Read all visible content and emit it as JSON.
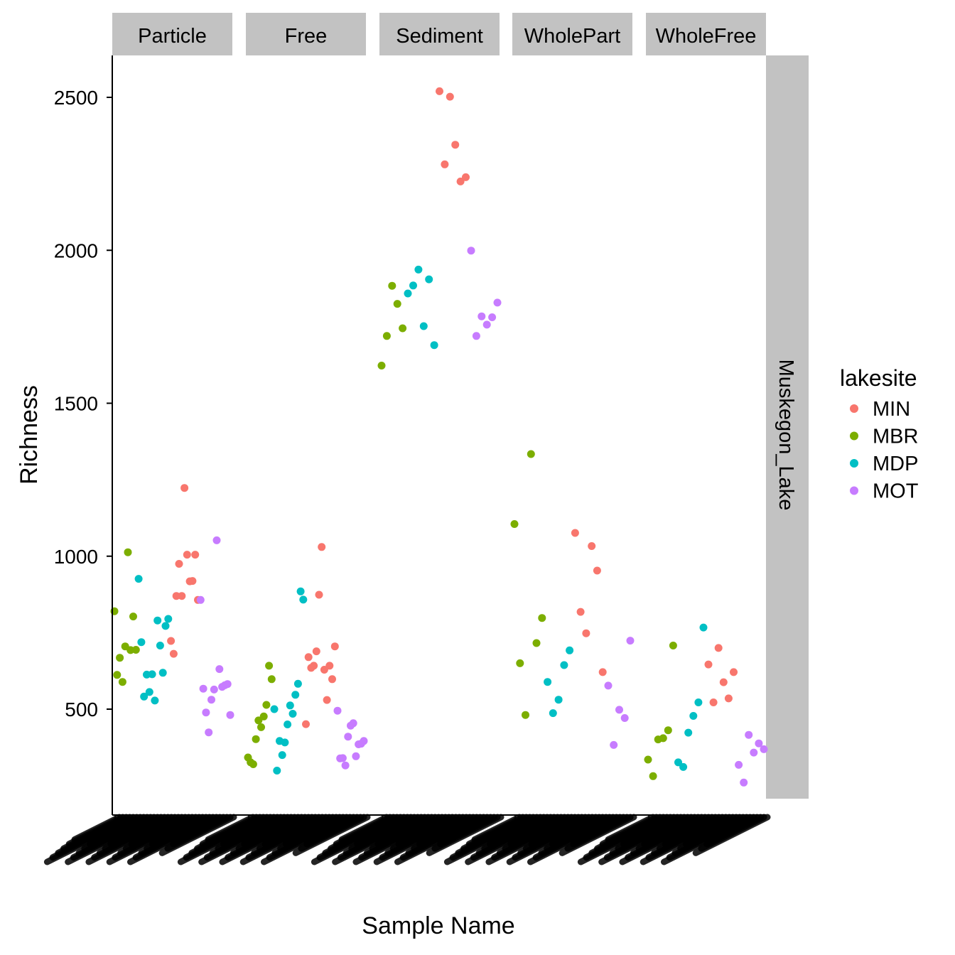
{
  "chart_data": {
    "type": "scatter",
    "title": "",
    "xlabel": "Sample Name",
    "ylabel": "Richness",
    "ylim": [
      200,
      2630
    ],
    "y_ticks": [
      500,
      1000,
      1500,
      2000,
      2500
    ],
    "grid": false,
    "facet_row_label": "Muskegon_Lake",
    "legend": {
      "title": "lakesite",
      "position": "right",
      "entries": [
        {
          "label": "MIN",
          "color": "#F8766D"
        },
        {
          "label": "MBR",
          "color": "#7CAE00"
        },
        {
          "label": "MDP",
          "color": "#00BFC4"
        },
        {
          "label": "MOT",
          "color": "#C77CFF"
        }
      ]
    },
    "facets": [
      {
        "label": "Particle",
        "series": [
          {
            "name": "MBR",
            "values": [
              820,
              612,
              668,
              589,
              705,
              1013,
              693,
              803,
              694
            ]
          },
          {
            "name": "MDP",
            "values": [
              926,
              719,
              541,
              613,
              556,
              614,
              528,
              790,
              708,
              619,
              772,
              795
            ]
          },
          {
            "name": "MIN",
            "values": [
              723,
              681,
              870,
              975,
              870,
              1223,
              1005,
              918,
              919,
              1005,
              857
            ]
          },
          {
            "name": "MOT",
            "values": [
              857,
              567,
              489,
              424,
              531,
              564,
              1052,
              631,
              573,
              578,
              582,
              481
            ]
          }
        ]
      },
      {
        "label": "Free",
        "series": [
          {
            "name": "MBR",
            "values": [
              342,
              326,
              320,
              402,
              463,
              441,
              476,
              514,
              642,
              598
            ]
          },
          {
            "name": "MDP",
            "values": [
              500,
              299,
              396,
              350,
              391,
              450,
              512,
              485,
              547,
              583,
              885,
              858
            ]
          },
          {
            "name": "MIN",
            "values": [
              451,
              670,
              635,
              642,
              689,
              874,
              1030,
              629,
              530,
              642,
              598,
              705
            ]
          },
          {
            "name": "MOT",
            "values": [
              495,
              339,
              340,
              316,
              410,
              446,
              454,
              346,
              385,
              387,
              396
            ]
          }
        ]
      },
      {
        "label": "Sediment",
        "series": [
          {
            "name": "MBR",
            "values": [
              1623,
              1720,
              1884,
              1825,
              1745
            ]
          },
          {
            "name": "MDP",
            "values": [
              1859,
              1885,
              1937,
              1752,
              1905,
              1690
            ]
          },
          {
            "name": "MIN",
            "values": [
              2520,
              2281,
              2502,
              2345,
              2225,
              2239
            ]
          },
          {
            "name": "MOT",
            "values": [
              1999,
              1720,
              1784,
              1757,
              1781,
              1829
            ]
          }
        ]
      },
      {
        "label": "WholePart",
        "series": [
          {
            "name": "MBR",
            "values": [
              1105,
              650,
              481,
              1334,
              716,
              798
            ]
          },
          {
            "name": "MDP",
            "values": [
              589,
              487,
              531,
              644,
              692
            ]
          },
          {
            "name": "MIN",
            "values": [
              1076,
              818,
              748,
              1033,
              953,
              621
            ]
          },
          {
            "name": "MOT",
            "values": [
              577,
              383,
              498,
              471,
              724
            ]
          }
        ]
      },
      {
        "label": "WholeFree",
        "series": [
          {
            "name": "MBR",
            "values": [
              335,
              281,
              401,
              405,
              431,
              708
            ]
          },
          {
            "name": "MDP",
            "values": [
              326,
              311,
              423,
              478,
              522,
              767
            ]
          },
          {
            "name": "MIN",
            "values": [
              646,
              522,
              700,
              588,
              535,
              621
            ]
          },
          {
            "name": "MOT",
            "values": [
              318,
              260,
              416,
              358,
              388,
              369
            ]
          }
        ]
      }
    ]
  }
}
